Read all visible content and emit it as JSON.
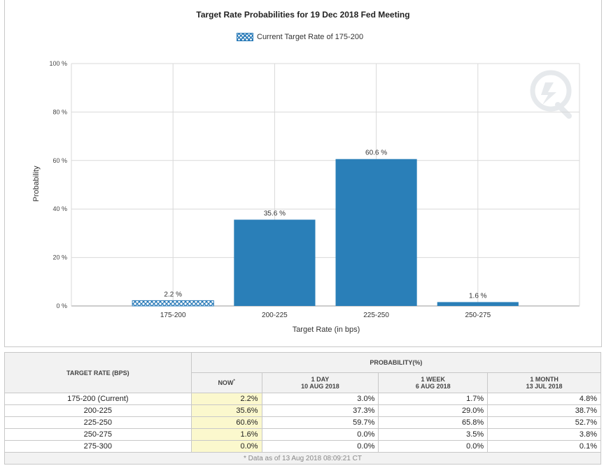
{
  "chart_data": {
    "type": "bar",
    "title": "Target Rate Probabilities for 19 Dec 2018 Fed Meeting",
    "legend": "Current Target Rate of 175-200",
    "xlabel": "Target Rate (in bps)",
    "ylabel": "Probability",
    "categories": [
      "175-200",
      "200-225",
      "225-250",
      "250-275"
    ],
    "values": [
      2.2,
      35.6,
      60.6,
      1.6
    ],
    "data_labels": [
      "2.2 %",
      "35.6 %",
      "60.6 %",
      "1.6 %"
    ],
    "highlighted_category": "175-200",
    "ylim": [
      0,
      100
    ],
    "yticks": [
      0,
      20,
      40,
      60,
      80,
      100
    ],
    "ytick_labels": [
      "0 %",
      "20 %",
      "40 %",
      "60 %",
      "80 %",
      "100 %"
    ],
    "bar_color": "#2a7fb8",
    "grid": true
  },
  "table": {
    "target_rate_header": "TARGET RATE (BPS)",
    "probability_header": "PROBABILITY(%)",
    "columns": [
      {
        "line1": "NOW",
        "line2": "",
        "marker": "*"
      },
      {
        "line1": "1 DAY",
        "line2": "10 AUG 2018",
        "marker": ""
      },
      {
        "line1": "1 WEEK",
        "line2": "6 AUG 2018",
        "marker": ""
      },
      {
        "line1": "1 MONTH",
        "line2": "13 JUL 2018",
        "marker": ""
      }
    ],
    "rows": [
      {
        "rate": "175-200 (Current)",
        "values": [
          "2.2%",
          "3.0%",
          "1.7%",
          "4.8%"
        ]
      },
      {
        "rate": "200-225",
        "values": [
          "35.6%",
          "37.3%",
          "29.0%",
          "38.7%"
        ]
      },
      {
        "rate": "225-250",
        "values": [
          "60.6%",
          "59.7%",
          "65.8%",
          "52.7%"
        ]
      },
      {
        "rate": "250-275",
        "values": [
          "1.6%",
          "0.0%",
          "3.5%",
          "3.8%"
        ]
      },
      {
        "rate": "275-300",
        "values": [
          "0.0%",
          "0.0%",
          "0.0%",
          "0.1%"
        ]
      }
    ],
    "footnote": "* Data as of 13 Aug 2018 08:09:21 CT"
  }
}
